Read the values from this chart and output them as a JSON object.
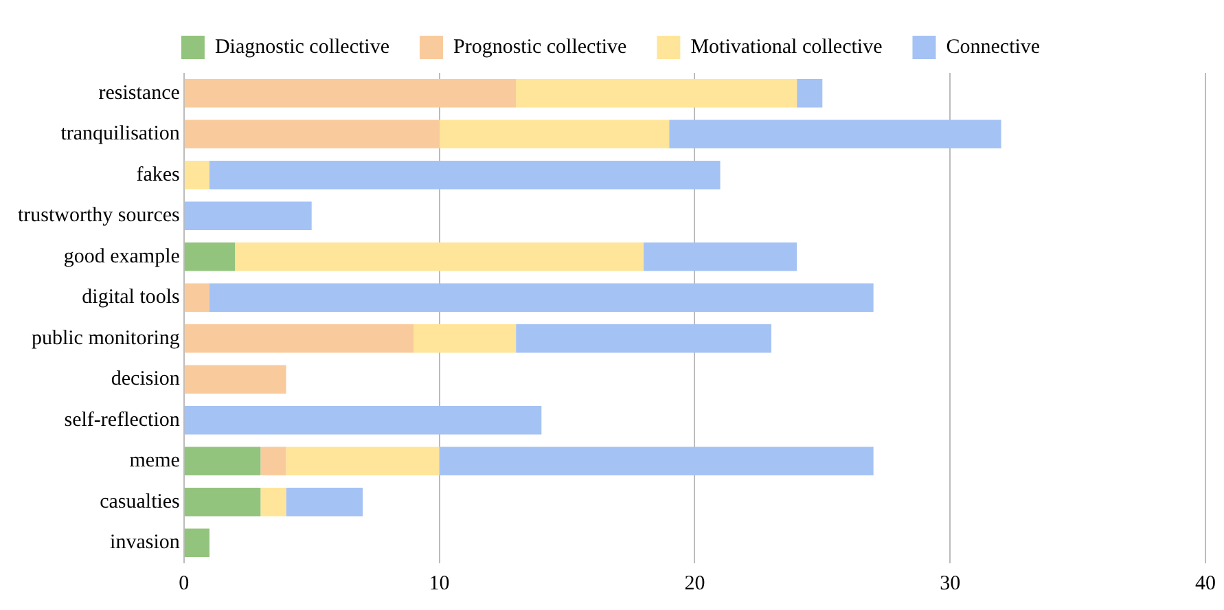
{
  "chart_data": {
    "type": "bar",
    "orientation": "horizontal",
    "stacked": true,
    "categories": [
      "resistance",
      "tranquilisation",
      "fakes",
      "trustworthy sources",
      "good example",
      "digital tools",
      "public monitoring",
      "decision",
      "self-reflection",
      "meme",
      "casualties",
      "invasion"
    ],
    "series": [
      {
        "name": "Diagnostic collective",
        "color": "#93c47d",
        "values": [
          0,
          0,
          0,
          0,
          2,
          0,
          0,
          0,
          0,
          3,
          3,
          1
        ]
      },
      {
        "name": "Prognostic collective",
        "color": "#f9cb9c",
        "values": [
          13,
          10,
          0,
          0,
          0,
          1,
          9,
          4,
          0,
          1,
          0,
          0
        ]
      },
      {
        "name": "Motivational collective",
        "color": "#ffe599",
        "values": [
          11,
          9,
          1,
          0,
          16,
          0,
          4,
          0,
          0,
          6,
          1,
          0
        ]
      },
      {
        "name": "Connective",
        "color": "#a4c2f4",
        "values": [
          1,
          13,
          20,
          5,
          6,
          26,
          10,
          0,
          14,
          17,
          3,
          0
        ]
      }
    ],
    "xlim": [
      0,
      40
    ],
    "xticks": [
      0,
      10,
      20,
      30,
      40
    ],
    "grid": "x",
    "legend": "top"
  }
}
